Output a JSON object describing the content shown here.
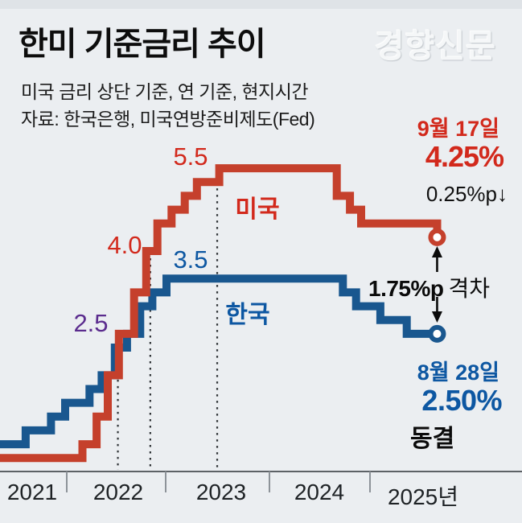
{
  "header": {
    "title": "한미 기준금리 추이",
    "logo": "경향신문"
  },
  "source": {
    "line1": "미국 금리 상단 기준, 연 기준, 현지시간",
    "line2": "자료: 한국은행, 미국연방준비제도(Fed)"
  },
  "annotations": {
    "us_date": "9월 17일",
    "us_rate": "4.25%",
    "us_change": "0.25%p↓",
    "gap_value": "1.75%p",
    "gap_word": "격차",
    "kr_date": "8월 28일",
    "kr_rate": "2.50%",
    "kr_status": "동결"
  },
  "labels": {
    "us_peak": "5.5",
    "us_mid": "4.0",
    "kr_peak": "3.5",
    "parity": "2.5"
  },
  "colors": {
    "background": "#ebeef1",
    "us_line": "#c5402c",
    "kr_line": "#19578f",
    "us_text": "#d2291c",
    "kr_text": "#0d57a2",
    "parity_text": "#5b2c8e",
    "axis": "#5d6266",
    "tick": "#8d9399",
    "dotted": "#2f3336",
    "gap_arrow": "#0b0b0b"
  },
  "chart_data": {
    "type": "line",
    "step": true,
    "title": "한미 기준금리 추이",
    "unit": "%",
    "x_axis_years": [
      "2021",
      "2022",
      "2023",
      "2024",
      "2025년"
    ],
    "ylim": [
      0,
      5.5
    ],
    "grid": false,
    "series": [
      {
        "name": "미국",
        "color": "#c5402c",
        "end_date_label": "9월 17일",
        "end_value": 4.25,
        "end_note": "0.25%p↓",
        "points": [
          [
            2021.33,
            0.25
          ],
          [
            2022.21,
            0.5
          ],
          [
            2022.35,
            1.0
          ],
          [
            2022.46,
            1.75
          ],
          [
            2022.57,
            2.5
          ],
          [
            2022.72,
            3.25
          ],
          [
            2022.84,
            4.0
          ],
          [
            2022.95,
            4.5
          ],
          [
            2023.09,
            4.75
          ],
          [
            2023.22,
            5.0
          ],
          [
            2023.34,
            5.25
          ],
          [
            2023.56,
            5.5
          ],
          [
            2024.72,
            5.0
          ],
          [
            2024.85,
            4.75
          ],
          [
            2024.96,
            4.5
          ],
          [
            2025.71,
            4.25
          ]
        ]
      },
      {
        "name": "한국",
        "color": "#19578f",
        "end_date_label": "8월 28일",
        "end_value": 2.5,
        "end_note": "동결",
        "points": [
          [
            2021.33,
            0.5
          ],
          [
            2021.65,
            0.75
          ],
          [
            2021.9,
            1.0
          ],
          [
            2022.04,
            1.25
          ],
          [
            2022.28,
            1.5
          ],
          [
            2022.4,
            1.75
          ],
          [
            2022.53,
            2.25
          ],
          [
            2022.65,
            2.5
          ],
          [
            2022.78,
            3.0
          ],
          [
            2022.9,
            3.25
          ],
          [
            2023.04,
            3.5
          ],
          [
            2024.78,
            3.25
          ],
          [
            2024.91,
            3.0
          ],
          [
            2025.15,
            2.75
          ],
          [
            2025.41,
            2.5
          ],
          [
            2025.71,
            2.5
          ]
        ]
      }
    ],
    "reference_lines": [
      {
        "t": 2022.56,
        "v": 2.5
      },
      {
        "t": 2022.88,
        "v": 4.0
      },
      {
        "t": 2023.54,
        "v": 5.5
      }
    ],
    "gap": {
      "value": "1.75%p",
      "label": "격차"
    }
  }
}
